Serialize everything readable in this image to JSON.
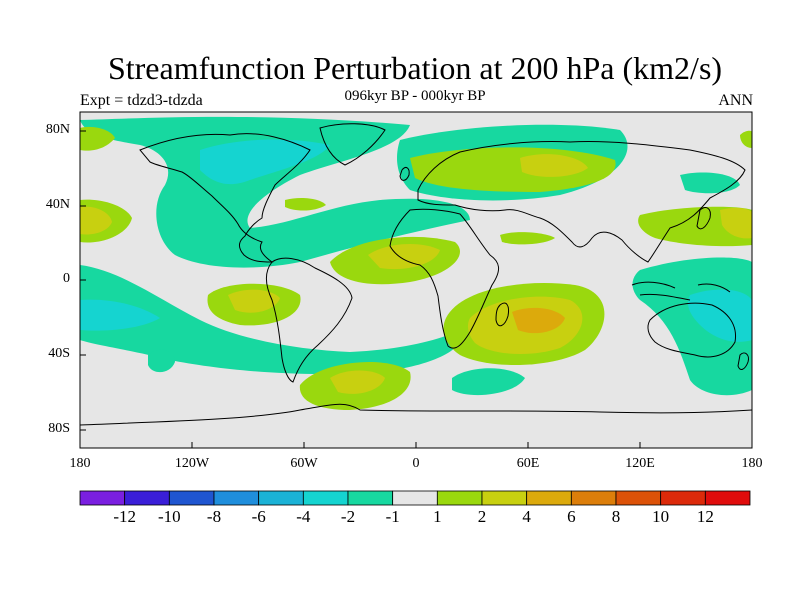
{
  "title": "Streamfunction Perturbation at 200 hPa (km2/s)",
  "subtitle": "096kyr BP - 000kyr BP",
  "left_label": "Expt = tdzd3-tdzda",
  "right_label": "ANN",
  "lat_labels": [
    "80N",
    "40N",
    "0",
    "40S",
    "80S"
  ],
  "lon_labels": [
    "180",
    "120W",
    "60W",
    "0",
    "60E",
    "120E",
    "180"
  ],
  "colorbar": {
    "colors": [
      "#7a1fe0",
      "#3a1ed8",
      "#1f55d0",
      "#1f8edc",
      "#1bb2d6",
      "#15d4d0",
      "#17d8a0",
      "#e6e6e6",
      "#9ad80e",
      "#c8d010",
      "#dcaa0c",
      "#dc7e0a",
      "#dc5208",
      "#dc2a0a",
      "#e00c0c"
    ],
    "labels": [
      "-12",
      "-10",
      "-8",
      "-6",
      "-4",
      "-2",
      "-1",
      "1",
      "2",
      "4",
      "6",
      "8",
      "10",
      "12"
    ]
  },
  "chart_data": {
    "type": "heatmap",
    "title": "Streamfunction Perturbation at 200 hPa (km2/s)",
    "subtitle": "096kyr BP - 000kyr BP",
    "experiment": "Expt = tdzd3-tdzda",
    "season": "ANN",
    "x_range": [
      -180,
      180
    ],
    "y_range": [
      -90,
      90
    ],
    "contour_levels": [
      -12,
      -10,
      -8,
      -6,
      -4,
      -2,
      -1,
      1,
      2,
      4,
      6,
      8,
      10,
      12
    ]
  }
}
